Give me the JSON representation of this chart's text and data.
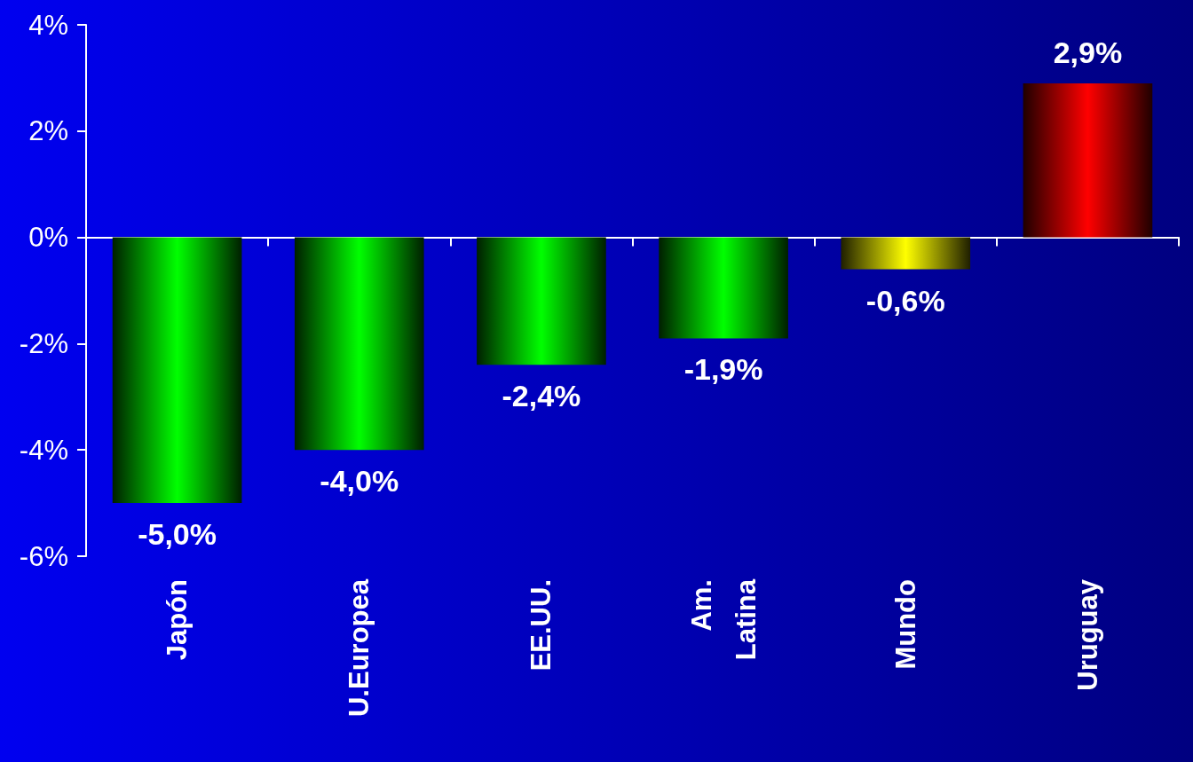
{
  "chart_data": {
    "type": "bar",
    "categories": [
      "Japón",
      "U.Europea",
      "EE.UU.",
      "Am.\nLatina",
      "Mundo",
      "Uruguay"
    ],
    "values": [
      -5.0,
      -4.0,
      -2.4,
      -1.9,
      -0.6,
      2.9
    ],
    "colors": [
      "#00ff00",
      "#00ff00",
      "#00ff00",
      "#00ff00",
      "#ffff00",
      "#ff0000"
    ],
    "value_labels": [
      "-5,0%",
      "-4,0%",
      "-2,4%",
      "-1,9%",
      "-0,6%",
      "2,9%"
    ],
    "ylim": [
      -6,
      4
    ],
    "yticks": [
      {
        "value": -6,
        "label": "-6%"
      },
      {
        "value": -4,
        "label": "-4%"
      },
      {
        "value": -2,
        "label": "-2%"
      },
      {
        "value": 0,
        "label": "0%"
      },
      {
        "value": 2,
        "label": "2%"
      },
      {
        "value": 4,
        "label": "4%"
      }
    ]
  }
}
